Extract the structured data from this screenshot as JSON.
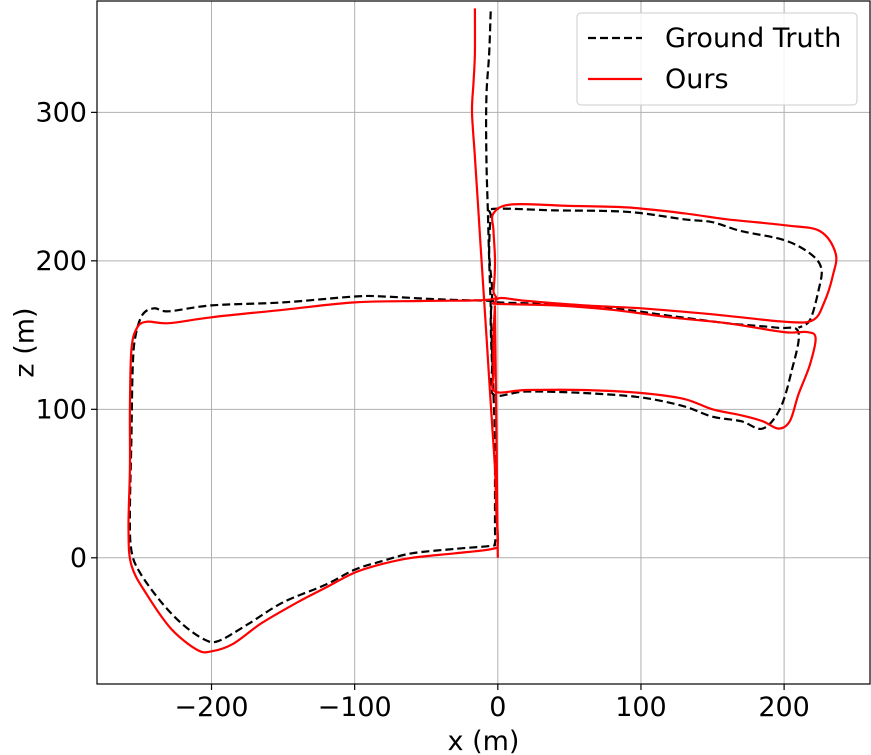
{
  "chart_data": {
    "type": "line",
    "title": "",
    "xlabel": "x (m)",
    "ylabel": "z (m)",
    "xlim": [
      -280,
      260
    ],
    "ylim": [
      -85,
      375
    ],
    "xticks": [
      -200,
      -100,
      0,
      100,
      200
    ],
    "yticks": [
      0,
      100,
      200,
      300
    ],
    "xtick_labels": [
      "−200",
      "−100",
      "0",
      "100",
      "200"
    ],
    "ytick_labels": [
      "0",
      "100",
      "200",
      "300"
    ],
    "grid": true,
    "legend_position": "top-right",
    "series": [
      {
        "name": "Ground Truth",
        "color": "#000000",
        "style": "dashed",
        "points": [
          [
            -5,
            368
          ],
          [
            -6,
            340
          ],
          [
            -8,
            310
          ],
          [
            -8,
            270
          ],
          [
            -7,
            235
          ],
          [
            -6,
            200
          ],
          [
            -5,
            170
          ],
          [
            -4,
            140
          ],
          [
            -3,
            110
          ],
          [
            -2,
            80
          ],
          [
            -2,
            50
          ],
          [
            -2,
            20
          ],
          [
            -2,
            10
          ],
          [
            -5,
            8
          ],
          [
            -30,
            6
          ],
          [
            -60,
            3
          ],
          [
            -80,
            -2
          ],
          [
            -100,
            -8
          ],
          [
            -120,
            -18
          ],
          [
            -150,
            -30
          ],
          [
            -175,
            -45
          ],
          [
            -195,
            -56
          ],
          [
            -205,
            -55
          ],
          [
            -220,
            -45
          ],
          [
            -235,
            -30
          ],
          [
            -250,
            -10
          ],
          [
            -256,
            5
          ],
          [
            -257,
            30
          ],
          [
            -256,
            80
          ],
          [
            -255,
            130
          ],
          [
            -253,
            150
          ],
          [
            -248,
            164
          ],
          [
            -240,
            168
          ],
          [
            -230,
            166
          ],
          [
            -200,
            170
          ],
          [
            -150,
            172
          ],
          [
            -100,
            176
          ],
          [
            -80,
            176
          ],
          [
            -40,
            174
          ],
          [
            -5,
            173
          ],
          [
            0,
            172
          ],
          [
            30,
            171
          ],
          [
            80,
            168
          ],
          [
            120,
            163
          ],
          [
            160,
            158
          ],
          [
            195,
            155
          ],
          [
            210,
            152
          ],
          [
            205,
            125
          ],
          [
            197,
            100
          ],
          [
            185,
            87
          ],
          [
            170,
            92
          ],
          [
            150,
            95
          ],
          [
            130,
            102
          ],
          [
            100,
            108
          ],
          [
            60,
            111
          ],
          [
            20,
            112
          ],
          [
            -3,
            110
          ],
          [
            -4,
            130
          ],
          [
            -5,
            160
          ],
          [
            -4,
            180
          ],
          [
            -6,
            205
          ],
          [
            -5,
            230
          ],
          [
            -3,
            235
          ],
          [
            40,
            234
          ],
          [
            90,
            233
          ],
          [
            130,
            228
          ],
          [
            150,
            226
          ],
          [
            170,
            220
          ],
          [
            200,
            214
          ],
          [
            218,
            205
          ],
          [
            226,
            195
          ],
          [
            224,
            180
          ],
          [
            218,
            160
          ],
          [
            210,
            155
          ]
        ]
      },
      {
        "name": "Ours",
        "color": "#ff0000",
        "style": "solid",
        "points": [
          [
            -16,
            370
          ],
          [
            -16,
            340
          ],
          [
            -17,
            320
          ],
          [
            -18,
            300
          ],
          [
            -16,
            270
          ],
          [
            -14,
            240
          ],
          [
            -12,
            210
          ],
          [
            -10,
            180
          ],
          [
            -8,
            150
          ],
          [
            -6,
            120
          ],
          [
            -4,
            90
          ],
          [
            -2,
            60
          ],
          [
            -1,
            30
          ],
          [
            0,
            10
          ],
          [
            -4,
            6
          ],
          [
            -30,
            3
          ],
          [
            -60,
            0
          ],
          [
            -80,
            -4
          ],
          [
            -100,
            -10
          ],
          [
            -120,
            -20
          ],
          [
            -140,
            -30
          ],
          [
            -165,
            -44
          ],
          [
            -185,
            -58
          ],
          [
            -200,
            -63
          ],
          [
            -210,
            -62
          ],
          [
            -228,
            -48
          ],
          [
            -245,
            -25
          ],
          [
            -256,
            -5
          ],
          [
            -258,
            20
          ],
          [
            -257,
            60
          ],
          [
            -257,
            100
          ],
          [
            -256,
            140
          ],
          [
            -252,
            155
          ],
          [
            -245,
            159
          ],
          [
            -230,
            158
          ],
          [
            -200,
            162
          ],
          [
            -150,
            167
          ],
          [
            -100,
            172
          ],
          [
            -50,
            173
          ],
          [
            -5,
            174
          ],
          [
            -3,
            180
          ],
          [
            -2,
            200
          ],
          [
            -3,
            220
          ],
          [
            -3,
            232
          ],
          [
            10,
            238
          ],
          [
            50,
            237
          ],
          [
            90,
            236
          ],
          [
            130,
            232
          ],
          [
            160,
            228
          ],
          [
            200,
            224
          ],
          [
            225,
            220
          ],
          [
            236,
            205
          ],
          [
            234,
            190
          ],
          [
            228,
            172
          ],
          [
            220,
            160
          ],
          [
            200,
            159
          ],
          [
            150,
            164
          ],
          [
            100,
            168
          ],
          [
            60,
            170
          ],
          [
            20,
            173
          ],
          [
            2,
            175
          ],
          [
            -2,
            172
          ],
          [
            0,
            171
          ],
          [
            40,
            170
          ],
          [
            80,
            167
          ],
          [
            120,
            162
          ],
          [
            160,
            158
          ],
          [
            200,
            152
          ],
          [
            216,
            152
          ],
          [
            222,
            148
          ],
          [
            218,
            130
          ],
          [
            210,
            110
          ],
          [
            204,
            92
          ],
          [
            196,
            87
          ],
          [
            185,
            92
          ],
          [
            170,
            96
          ],
          [
            150,
            100
          ],
          [
            130,
            107
          ],
          [
            100,
            111
          ],
          [
            60,
            113
          ],
          [
            20,
            113
          ],
          [
            -2,
            112
          ],
          [
            -3,
            125
          ],
          [
            -3,
            150
          ],
          [
            -2,
            170
          ],
          [
            0,
            0
          ]
        ]
      }
    ]
  }
}
